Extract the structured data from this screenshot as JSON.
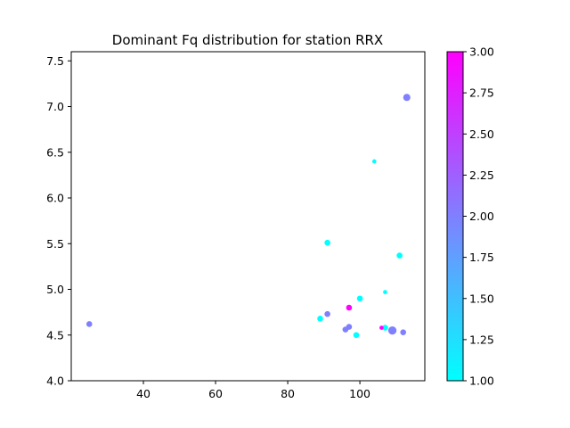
{
  "chart_data": {
    "type": "scatter",
    "title": "Dominant Fq distribution for station RRX",
    "xlabel": "",
    "ylabel": "",
    "xlim": [
      20,
      118
    ],
    "ylim": [
      4.0,
      7.6
    ],
    "xticks": [
      40,
      60,
      80,
      100
    ],
    "yticks": [
      4.0,
      4.5,
      5.0,
      5.5,
      6.0,
      6.5,
      7.0,
      7.5
    ],
    "xtick_labels": [
      "40",
      "60",
      "80",
      "100"
    ],
    "ytick_labels": [
      "4.0",
      "4.5",
      "5.0",
      "5.5",
      "6.0",
      "6.5",
      "7.0",
      "7.5"
    ],
    "grid": false,
    "colorbar": {
      "colormap": "cool",
      "range": [
        1.0,
        3.0
      ],
      "ticks": [
        1.0,
        1.25,
        1.5,
        1.75,
        2.0,
        2.25,
        2.5,
        2.75,
        3.0
      ],
      "tick_labels": [
        "1.00",
        "1.25",
        "1.50",
        "1.75",
        "2.00",
        "2.25",
        "2.50",
        "2.75",
        "3.00"
      ],
      "colors": [
        "#00ffff",
        "#ff00ff"
      ]
    },
    "points": [
      {
        "x": 25,
        "y": 4.62,
        "c": 2.0,
        "size": 1
      },
      {
        "x": 89,
        "y": 4.68,
        "c": 1.0,
        "size": 1
      },
      {
        "x": 91,
        "y": 5.51,
        "c": 1.0,
        "size": 1
      },
      {
        "x": 91,
        "y": 4.73,
        "c": 2.0,
        "size": 1
      },
      {
        "x": 96,
        "y": 4.56,
        "c": 2.0,
        "size": 1
      },
      {
        "x": 97,
        "y": 4.59,
        "c": 2.0,
        "size": 1
      },
      {
        "x": 97,
        "y": 4.8,
        "c": 3.0,
        "size": 1
      },
      {
        "x": 99,
        "y": 4.5,
        "c": 1.0,
        "size": 1
      },
      {
        "x": 100,
        "y": 4.9,
        "c": 1.0,
        "size": 1
      },
      {
        "x": 104,
        "y": 6.4,
        "c": 1.0,
        "size": 0.5
      },
      {
        "x": 106,
        "y": 4.58,
        "c": 3.0,
        "size": 0.5
      },
      {
        "x": 107,
        "y": 4.97,
        "c": 1.0,
        "size": 0.5
      },
      {
        "x": 107,
        "y": 4.58,
        "c": 1.0,
        "size": 1
      },
      {
        "x": 109,
        "y": 4.55,
        "c": 2.0,
        "size": 2
      },
      {
        "x": 111,
        "y": 5.37,
        "c": 1.0,
        "size": 1
      },
      {
        "x": 112,
        "y": 4.53,
        "c": 2.0,
        "size": 1
      },
      {
        "x": 113,
        "y": 7.1,
        "c": 2.0,
        "size": 1.5
      }
    ]
  }
}
